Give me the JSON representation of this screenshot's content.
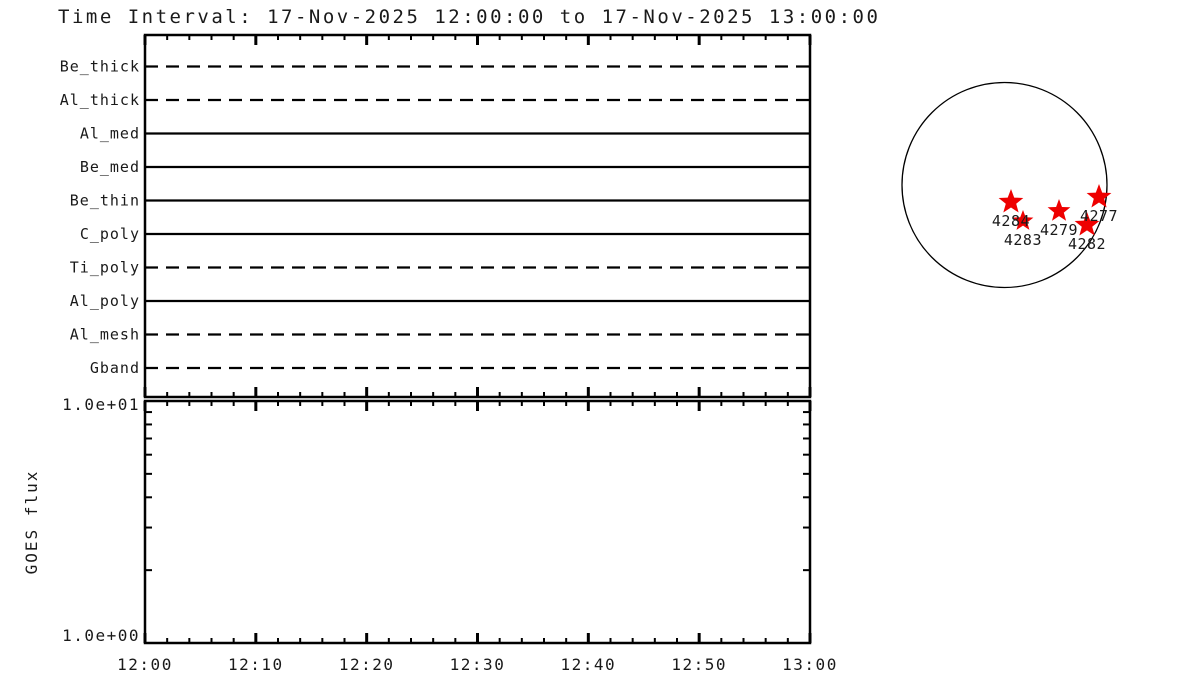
{
  "title": "Time Interval: 17-Nov-2025 12:00:00 to 17-Nov-2025 13:00:00",
  "colors": {
    "background": "#ffffff",
    "axis": "#000000",
    "text": "#1a1a1a",
    "star": "#ee0000"
  },
  "chart_data": [
    {
      "id": "filter-timeline",
      "type": "line",
      "description": "Instrument filter observation timeline; each filter drawn as a horizontal line spanning the full time interval",
      "x_axis": {
        "start": "12:00",
        "end": "13:00",
        "major_ticks": [
          "12:00",
          "12:10",
          "12:20",
          "12:30",
          "12:40",
          "12:50",
          "13:00"
        ],
        "minor_step_minutes": 2,
        "tick_labels_shown": false
      },
      "filters": [
        {
          "label": "Be_thick",
          "linestyle": "dashed",
          "coverage": [
            [
              "12:00",
              "13:00"
            ]
          ]
        },
        {
          "label": "Al_thick",
          "linestyle": "dashed",
          "coverage": [
            [
              "12:00",
              "13:00"
            ]
          ]
        },
        {
          "label": "Al_med",
          "linestyle": "solid",
          "coverage": [
            [
              "12:00",
              "13:00"
            ]
          ]
        },
        {
          "label": "Be_med",
          "linestyle": "solid",
          "coverage": [
            [
              "12:00",
              "13:00"
            ]
          ]
        },
        {
          "label": "Be_thin",
          "linestyle": "solid",
          "coverage": [
            [
              "12:00",
              "13:00"
            ]
          ]
        },
        {
          "label": "C_poly",
          "linestyle": "solid",
          "coverage": [
            [
              "12:00",
              "13:00"
            ]
          ]
        },
        {
          "label": "Ti_poly",
          "linestyle": "dashed",
          "coverage": [
            [
              "12:00",
              "13:00"
            ]
          ]
        },
        {
          "label": "Al_poly",
          "linestyle": "solid",
          "coverage": [
            [
              "12:00",
              "13:00"
            ]
          ]
        },
        {
          "label": "Al_mesh",
          "linestyle": "dashed",
          "coverage": [
            [
              "12:00",
              "13:00"
            ]
          ]
        },
        {
          "label": "Gband",
          "linestyle": "dashed",
          "coverage": [
            [
              "12:00",
              "13:00"
            ]
          ]
        }
      ]
    },
    {
      "id": "goes-flux",
      "type": "line",
      "ylabel": "GOES flux",
      "y_scale": "log",
      "ylim": [
        1,
        10
      ],
      "y_tick_labels": [
        {
          "value": 10,
          "label": "1.0e+01"
        },
        {
          "value": 1,
          "label": "1.0e+00"
        }
      ],
      "y_minor_ticks": [
        2,
        3,
        4,
        5,
        6,
        7,
        8,
        9
      ],
      "x_axis": {
        "start": "12:00",
        "end": "13:00",
        "major_ticks": [
          "12:00",
          "12:10",
          "12:20",
          "12:30",
          "12:40",
          "12:50",
          "13:00"
        ],
        "minor_step_minutes": 2,
        "tick_labels_shown": true
      },
      "series": []
    },
    {
      "id": "solar-disk",
      "type": "scatter",
      "description": "Solar disk with NOAA active regions marked by red stars; positions in units of solar radius from disk center",
      "marker": "star",
      "regions": [
        {
          "label": "4284",
          "x_rsun": 0.063,
          "y_rsun": 0.166,
          "marker_size": 13
        },
        {
          "label": "4283",
          "x_rsun": 0.18,
          "y_rsun": 0.351,
          "marker_size": 11
        },
        {
          "label": "4279",
          "x_rsun": 0.532,
          "y_rsun": 0.254,
          "marker_size": 12
        },
        {
          "label": "4277",
          "x_rsun": 0.922,
          "y_rsun": 0.117,
          "marker_size": 13
        },
        {
          "label": "4282",
          "x_rsun": 0.805,
          "y_rsun": 0.39,
          "marker_size": 13
        }
      ]
    }
  ]
}
